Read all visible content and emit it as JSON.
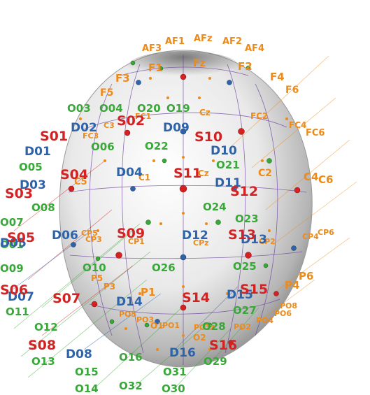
{
  "colors": {
    "source": "#d42121",
    "detector": "#2f63a8",
    "optode": "#38a838",
    "eeg": "#ec8a1a",
    "grid": "#6a3fa0",
    "head_shadow": "#8c8c8c"
  },
  "eeg_labels": [
    "AF1",
    "AFz",
    "AF2",
    "AF3",
    "AF4",
    "F1",
    "Fz",
    "F2",
    "F3",
    "F4",
    "F5",
    "F6",
    "FC1",
    "Cz",
    "FC2",
    "FC3",
    "FC4",
    "FC6",
    "C3",
    "C1",
    "Cz",
    "C2",
    "C4",
    "C6",
    "C5",
    "CP5",
    "CP3",
    "CP1",
    "CPz",
    "CP2",
    "CP4",
    "CP6",
    "P5",
    "P3",
    "P1",
    "P4",
    "P6",
    "PO5",
    "PO3",
    "PO1",
    "POz",
    "PO2",
    "PO4",
    "PO6",
    "PO8",
    "O1",
    "Oz",
    "O2"
  ],
  "sources": [
    "S01",
    "S02",
    "S03",
    "S04",
    "S05",
    "S06",
    "S07",
    "S08",
    "S09",
    "S10",
    "S11",
    "S12",
    "S13",
    "S14",
    "S15",
    "S16"
  ],
  "detectors": [
    "D01",
    "D02",
    "D03",
    "D04",
    "D05",
    "D06",
    "D07",
    "D08",
    "D09",
    "D10",
    "D11",
    "D12",
    "D13",
    "D14",
    "D15",
    "D16"
  ],
  "optodes": [
    "O01",
    "O03",
    "O04",
    "O05",
    "O06",
    "O07",
    "O08",
    "O09",
    "O10",
    "O11",
    "O12",
    "O13",
    "O14",
    "O15",
    "O16",
    "O19",
    "O20",
    "O21",
    "O22",
    "O23",
    "O24",
    "O25",
    "O26",
    "O27",
    "O28",
    "O29",
    "O30",
    "O31",
    "O32"
  ]
}
